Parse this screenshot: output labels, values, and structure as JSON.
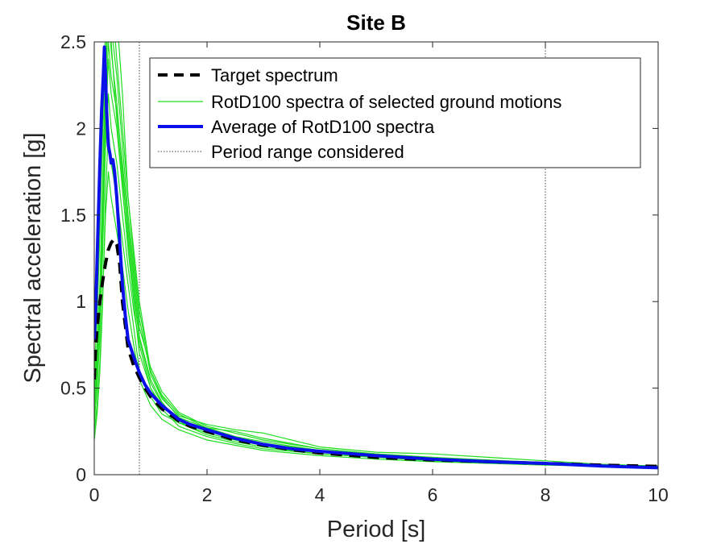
{
  "chart_data": {
    "type": "line",
    "title": "Site B",
    "xlabel": "Period [s]",
    "ylabel": "Spectral acceleration [g]",
    "xlim": [
      0,
      10
    ],
    "ylim": [
      0,
      2.5
    ],
    "xticks": [
      0,
      2,
      4,
      6,
      8,
      10
    ],
    "yticks": [
      0,
      0.5,
      1,
      1.5,
      2,
      2.5
    ],
    "xtick_labels": [
      "0",
      "2",
      "4",
      "6",
      "8",
      "10"
    ],
    "ytick_labels": [
      "0",
      "0.5",
      "1",
      "1.5",
      "2",
      "2.5"
    ],
    "grid": false,
    "legend_position": "top-right",
    "period_range": [
      0.8,
      8
    ],
    "colors": {
      "target": "#000000",
      "records": "#22dd22",
      "average": "#0a10e8",
      "range": "#404040"
    },
    "series": [
      {
        "name": "Target spectrum",
        "style": "dashed",
        "x": [
          0,
          0.02,
          0.05,
          0.1,
          0.15,
          0.2,
          0.25,
          0.3,
          0.35,
          0.4,
          0.45,
          0.5,
          0.6,
          0.7,
          0.8,
          0.9,
          1.0,
          1.2,
          1.5,
          1.7,
          2.0,
          2.5,
          3.0,
          3.5,
          4.0,
          5.0,
          6.0,
          7.0,
          8.0,
          9.0,
          10.0
        ],
        "y": [
          0.55,
          0.7,
          0.85,
          1.0,
          1.12,
          1.22,
          1.3,
          1.34,
          1.36,
          1.33,
          1.22,
          1.0,
          0.73,
          0.63,
          0.56,
          0.5,
          0.45,
          0.38,
          0.31,
          0.28,
          0.25,
          0.2,
          0.17,
          0.145,
          0.125,
          0.1,
          0.085,
          0.075,
          0.065,
          0.055,
          0.048
        ]
      },
      {
        "name": "Average of RotD100 spectra",
        "style": "solid",
        "x": [
          0,
          0.03,
          0.06,
          0.1,
          0.13,
          0.16,
          0.18,
          0.2,
          0.22,
          0.25,
          0.28,
          0.3,
          0.33,
          0.36,
          0.4,
          0.45,
          0.5,
          0.55,
          0.6,
          0.7,
          0.8,
          0.9,
          1.0,
          1.2,
          1.5,
          1.7,
          2.0,
          2.5,
          3.0,
          3.5,
          4.0,
          5.0,
          6.0,
          7.0,
          8.0,
          9.0,
          10.0
        ],
        "y": [
          0.78,
          1.0,
          1.35,
          1.8,
          2.1,
          2.3,
          2.47,
          2.3,
          2.1,
          1.9,
          1.85,
          1.8,
          1.82,
          1.75,
          1.6,
          1.35,
          1.1,
          0.92,
          0.78,
          0.68,
          0.59,
          0.52,
          0.47,
          0.4,
          0.32,
          0.29,
          0.26,
          0.21,
          0.175,
          0.15,
          0.135,
          0.11,
          0.09,
          0.075,
          0.065,
          0.05,
          0.04
        ]
      }
    ],
    "record_series_name": "RotD100 spectra of selected ground motions",
    "range_series_name": "Period range considered",
    "records": [
      {
        "x": [
          0,
          0.05,
          0.1,
          0.15,
          0.2,
          0.25,
          0.3,
          0.4,
          0.5,
          0.6,
          0.7,
          0.8,
          1.0,
          1.2,
          1.5,
          2.0,
          2.5,
          3.0,
          4.0,
          5.0,
          6.0,
          7.0,
          8.0,
          9.0,
          10.0
        ],
        "y": [
          0.55,
          0.75,
          1.1,
          1.7,
          2.4,
          2.6,
          2.7,
          2.65,
          2.2,
          1.6,
          1.3,
          1.0,
          0.6,
          0.45,
          0.33,
          0.27,
          0.22,
          0.18,
          0.14,
          0.1,
          0.08,
          0.07,
          0.06,
          0.05,
          0.045
        ]
      },
      {
        "x": [
          0,
          0.05,
          0.1,
          0.15,
          0.2,
          0.25,
          0.3,
          0.4,
          0.5,
          0.6,
          0.7,
          0.8,
          1.0,
          1.2,
          1.5,
          2.0,
          2.5,
          3.0,
          4.0,
          5.0,
          6.0,
          7.0,
          8.0,
          9.0,
          10.0
        ],
        "y": [
          0.4,
          0.6,
          0.9,
          1.4,
          2.2,
          2.8,
          2.5,
          2.05,
          1.7,
          1.4,
          1.1,
          0.8,
          0.55,
          0.42,
          0.3,
          0.24,
          0.2,
          0.17,
          0.13,
          0.11,
          0.09,
          0.075,
          0.065,
          0.055,
          0.05
        ]
      },
      {
        "x": [
          0,
          0.05,
          0.1,
          0.15,
          0.2,
          0.25,
          0.3,
          0.4,
          0.5,
          0.6,
          0.7,
          0.8,
          1.0,
          1.2,
          1.5,
          2.0,
          2.5,
          3.0,
          4.0,
          5.0,
          6.0,
          7.0,
          8.0,
          9.0,
          10.0
        ],
        "y": [
          0.3,
          0.5,
          0.8,
          1.3,
          1.9,
          2.2,
          2.0,
          1.8,
          1.5,
          1.2,
          0.95,
          0.75,
          0.5,
          0.38,
          0.28,
          0.22,
          0.18,
          0.15,
          0.12,
          0.1,
          0.085,
          0.07,
          0.06,
          0.05,
          0.045
        ]
      },
      {
        "x": [
          0,
          0.05,
          0.1,
          0.15,
          0.2,
          0.25,
          0.3,
          0.4,
          0.5,
          0.6,
          0.7,
          0.8,
          1.0,
          1.2,
          1.5,
          2.0,
          2.5,
          3.0,
          4.0,
          5.0,
          6.0,
          7.0,
          8.0,
          9.0,
          10.0
        ],
        "y": [
          0.2,
          0.35,
          0.6,
          1.0,
          1.6,
          2.0,
          1.8,
          1.6,
          1.35,
          1.1,
          0.85,
          0.6,
          0.45,
          0.35,
          0.3,
          0.27,
          0.25,
          0.21,
          0.15,
          0.12,
          0.1,
          0.08,
          0.065,
          0.055,
          0.05
        ]
      },
      {
        "x": [
          0,
          0.05,
          0.1,
          0.15,
          0.2,
          0.25,
          0.3,
          0.4,
          0.5,
          0.6,
          0.7,
          0.8,
          1.0,
          1.2,
          1.5,
          2.0,
          2.5,
          3.0,
          4.0,
          5.0,
          6.0,
          7.0,
          8.0,
          9.0,
          10.0
        ],
        "y": [
          0.25,
          0.4,
          0.65,
          1.05,
          1.5,
          1.75,
          1.6,
          1.4,
          1.2,
          0.95,
          0.75,
          0.55,
          0.4,
          0.32,
          0.26,
          0.2,
          0.17,
          0.14,
          0.11,
          0.09,
          0.075,
          0.065,
          0.055,
          0.05,
          0.04
        ]
      },
      {
        "x": [
          0,
          0.05,
          0.1,
          0.15,
          0.2,
          0.25,
          0.3,
          0.4,
          0.5,
          0.6,
          0.7,
          0.8,
          1.0,
          1.2,
          1.5,
          2.0,
          2.5,
          3.0,
          4.0,
          5.0,
          6.0,
          7.0,
          8.0,
          9.0,
          10.0
        ],
        "y": [
          0.6,
          0.9,
          1.4,
          2.0,
          2.6,
          2.9,
          2.6,
          2.3,
          1.9,
          1.5,
          1.2,
          0.9,
          0.58,
          0.44,
          0.34,
          0.29,
          0.26,
          0.24,
          0.16,
          0.13,
          0.12,
          0.1,
          0.08,
          0.06,
          0.05
        ]
      },
      {
        "x": [
          0,
          0.05,
          0.1,
          0.15,
          0.2,
          0.25,
          0.3,
          0.4,
          0.5,
          0.6,
          0.7,
          0.8,
          1.0,
          1.2,
          1.5,
          2.0,
          2.5,
          3.0,
          4.0,
          5.0,
          6.0,
          7.0,
          8.0,
          9.0,
          10.0
        ],
        "y": [
          0.35,
          0.55,
          0.85,
          1.35,
          2.0,
          2.4,
          2.2,
          2.0,
          1.65,
          1.3,
          1.0,
          0.7,
          0.5,
          0.4,
          0.3,
          0.23,
          0.19,
          0.16,
          0.12,
          0.1,
          0.085,
          0.07,
          0.06,
          0.05,
          0.04
        ]
      },
      {
        "x": [
          0,
          0.05,
          0.1,
          0.15,
          0.2,
          0.25,
          0.3,
          0.4,
          0.5,
          0.6,
          0.7,
          0.8,
          1.0,
          1.2,
          1.5,
          2.0,
          2.5,
          3.0,
          4.0,
          5.0,
          6.0,
          7.0,
          8.0,
          9.0,
          10.0
        ],
        "y": [
          0.5,
          0.7,
          1.0,
          1.5,
          2.1,
          2.5,
          2.3,
          2.1,
          1.8,
          1.45,
          1.15,
          0.85,
          0.62,
          0.48,
          0.36,
          0.28,
          0.24,
          0.2,
          0.15,
          0.12,
          0.1,
          0.085,
          0.07,
          0.06,
          0.05
        ]
      },
      {
        "x": [
          0,
          0.05,
          0.1,
          0.15,
          0.2,
          0.25,
          0.3,
          0.4,
          0.5,
          0.6,
          0.7,
          0.8,
          1.0,
          1.2,
          1.5,
          2.0,
          2.5,
          3.0,
          4.0,
          5.0,
          6.0,
          7.0,
          8.0,
          9.0,
          10.0
        ],
        "y": [
          0.45,
          0.65,
          0.95,
          1.5,
          2.3,
          2.7,
          2.45,
          2.15,
          1.75,
          1.35,
          1.05,
          0.78,
          0.53,
          0.41,
          0.31,
          0.25,
          0.21,
          0.17,
          0.13,
          0.11,
          0.09,
          0.075,
          0.065,
          0.055,
          0.045
        ]
      },
      {
        "x": [
          0,
          0.05,
          0.1,
          0.15,
          0.2,
          0.25,
          0.3,
          0.4,
          0.5,
          0.6,
          0.7,
          0.8,
          1.0,
          1.2,
          1.5,
          2.0,
          2.5,
          3.0,
          4.0,
          5.0,
          6.0,
          7.0,
          8.0,
          9.0,
          10.0
        ],
        "y": [
          0.5,
          0.7,
          1.05,
          1.6,
          2.5,
          3.0,
          2.8,
          2.4,
          2.0,
          1.6,
          1.25,
          0.95,
          0.6,
          0.46,
          0.35,
          0.27,
          0.22,
          0.19,
          0.14,
          0.115,
          0.095,
          0.08,
          0.068,
          0.058,
          0.048
        ]
      }
    ]
  }
}
